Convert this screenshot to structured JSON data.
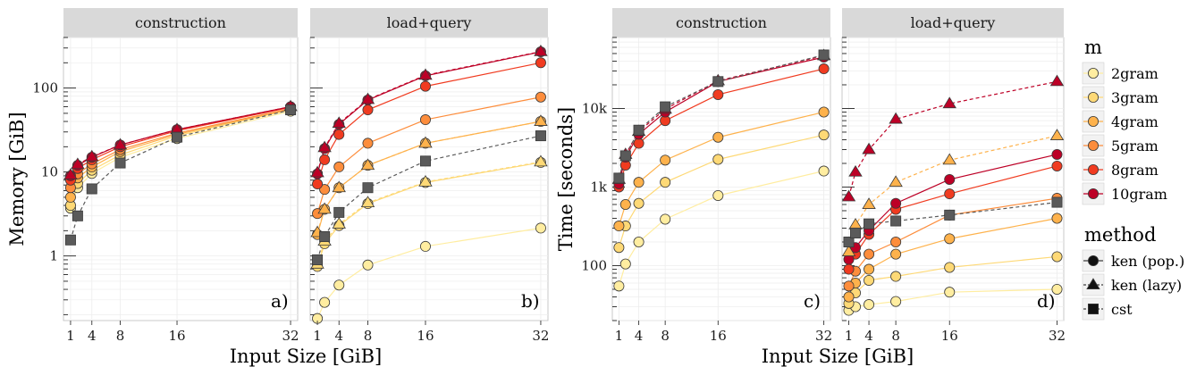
{
  "chart_data": {
    "type": "line",
    "x_axis": {
      "label": "Input Size [GiB]",
      "ticks": [
        1,
        4,
        8,
        16,
        32
      ],
      "range": [
        0,
        33
      ]
    },
    "y_axis_log": true,
    "legend": {
      "placement": "right",
      "m_title": "m",
      "m_entries": [
        {
          "key": "2gram",
          "label": "2gram",
          "color": "#FFEDA0"
        },
        {
          "key": "3gram",
          "label": "3gram",
          "color": "#FED976"
        },
        {
          "key": "4gram",
          "label": "4gram",
          "color": "#FEB24C"
        },
        {
          "key": "5gram",
          "label": "5gram",
          "color": "#FD8D3C"
        },
        {
          "key": "8gram",
          "label": "8gram",
          "color": "#F03B20"
        },
        {
          "key": "10gram",
          "label": "10gram",
          "color": "#BD0026"
        }
      ],
      "method_title": "method",
      "method_entries": [
        {
          "key": "pop",
          "label": "ken (pop.)",
          "shape": "circle",
          "dash": "solid"
        },
        {
          "key": "lazy",
          "label": "ken (lazy)",
          "shape": "triangle",
          "dash": "dashed"
        },
        {
          "key": "cst",
          "label": "cst",
          "shape": "square",
          "dash": "dashed"
        }
      ]
    },
    "cst_color": "#5a5a5a",
    "groups": [
      {
        "ylabel": "Memory [GiB]",
        "y_range": [
          0.17,
          400
        ],
        "y_ticks": [
          {
            "v": 1,
            "label": "1"
          },
          {
            "v": 10,
            "label": "10"
          },
          {
            "v": 100,
            "label": "100"
          }
        ],
        "panels": [
          {
            "strip": "construction",
            "tag": "a)",
            "series": [
              {
                "m": "2gram",
                "method": "pop",
                "x": [
                  1,
                  2,
                  4,
                  8,
                  16,
                  32
                ],
                "y": [
                  3.7,
                  6.5,
                  9.6,
                  15,
                  25,
                  53
                ]
              },
              {
                "m": "3gram",
                "method": "pop",
                "x": [
                  1,
                  2,
                  4,
                  8,
                  16,
                  32
                ],
                "y": [
                  4.0,
                  7.3,
                  10.5,
                  16,
                  27,
                  55
                ]
              },
              {
                "m": "4gram",
                "method": "pop",
                "x": [
                  1,
                  2,
                  4,
                  8,
                  16,
                  32
                ],
                "y": [
                  5.0,
                  8.5,
                  11.5,
                  17.5,
                  28,
                  56
                ]
              },
              {
                "m": "5gram",
                "method": "pop",
                "x": [
                  1,
                  2,
                  4,
                  8,
                  16,
                  32
                ],
                "y": [
                  6.5,
                  9.5,
                  12.5,
                  18.5,
                  29,
                  57
                ]
              },
              {
                "m": "8gram",
                "method": "pop",
                "x": [
                  1,
                  2,
                  4,
                  8,
                  16,
                  32
                ],
                "y": [
                  8,
                  11,
                  14,
                  20,
                  31,
                  59
                ]
              },
              {
                "m": "10gram",
                "method": "pop",
                "x": [
                  1,
                  2,
                  4,
                  8,
                  16,
                  32
                ],
                "y": [
                  9,
                  12,
                  15,
                  21,
                  32,
                  60
                ]
              },
              {
                "m": "10gram",
                "method": "lazy",
                "x": [
                  1,
                  2,
                  4,
                  8,
                  16,
                  32
                ],
                "y": [
                  9.2,
                  12.3,
                  15.2,
                  21,
                  32,
                  60
                ]
              },
              {
                "m": "cst",
                "method": "cst",
                "x": [
                  1,
                  2,
                  4,
                  8,
                  16,
                  32
                ],
                "y": [
                  1.55,
                  3.0,
                  6.3,
                  12.8,
                  26,
                  55
                ]
              }
            ]
          },
          {
            "strip": "load+query",
            "tag": "b)",
            "series": [
              {
                "m": "2gram",
                "method": "pop",
                "x": [
                  1,
                  2,
                  4,
                  8,
                  16,
                  32
                ],
                "y": [
                  0.18,
                  0.28,
                  0.45,
                  0.78,
                  1.3,
                  2.15
                ]
              },
              {
                "m": "3gram",
                "method": "pop",
                "x": [
                  1,
                  2,
                  4,
                  8,
                  16,
                  32
                ],
                "y": [
                  0.75,
                  1.4,
                  2.3,
                  4.2,
                  7.5,
                  13
                ]
              },
              {
                "m": "4gram",
                "method": "pop",
                "x": [
                  1,
                  2,
                  4,
                  8,
                  16,
                  32
                ],
                "y": [
                  1.8,
                  3.6,
                  6.5,
                  12,
                  22,
                  40
                ]
              },
              {
                "m": "5gram",
                "method": "pop",
                "x": [
                  1,
                  2,
                  4,
                  8,
                  16,
                  32
                ],
                "y": [
                  3.2,
                  6.2,
                  11.5,
                  22,
                  42,
                  78
                ]
              },
              {
                "m": "8gram",
                "method": "pop",
                "x": [
                  1,
                  2,
                  4,
                  8,
                  16,
                  32
                ],
                "y": [
                  7.2,
                  14,
                  28,
                  55,
                  105,
                  200
                ]
              },
              {
                "m": "10gram",
                "method": "pop",
                "x": [
                  1,
                  2,
                  4,
                  8,
                  16,
                  32
                ],
                "y": [
                  9.5,
                  19,
                  37,
                  72,
                  140,
                  270
                ]
              },
              {
                "m": "3gram",
                "method": "lazy",
                "x": [
                  1,
                  2,
                  4,
                  8,
                  16,
                  32
                ],
                "y": [
                  0.8,
                  1.5,
                  2.4,
                  4.3,
                  7.6,
                  13.2
                ]
              },
              {
                "m": "4gram",
                "method": "lazy",
                "x": [
                  1,
                  2,
                  4,
                  8,
                  16,
                  32
                ],
                "y": [
                  1.9,
                  3.6,
                  6.5,
                  12,
                  22,
                  40
                ]
              },
              {
                "m": "10gram",
                "method": "lazy",
                "x": [
                  1,
                  2,
                  4,
                  8,
                  16,
                  32
                ],
                "y": [
                  9.8,
                  19.5,
                  38,
                  73,
                  142,
                  272
                ]
              },
              {
                "m": "cst",
                "method": "cst",
                "x": [
                  1,
                  2,
                  4,
                  8,
                  16,
                  32
                ],
                "y": [
                  0.9,
                  1.7,
                  3.3,
                  6.5,
                  13.5,
                  27
                ]
              }
            ]
          }
        ]
      },
      {
        "ylabel": "Time [seconds]",
        "y_range": [
          20,
          80000
        ],
        "y_ticks": [
          {
            "v": 100,
            "label": "100"
          },
          {
            "v": 1000,
            "label": "1k"
          },
          {
            "v": 10000,
            "label": "10k"
          }
        ],
        "panels": [
          {
            "strip": "construction",
            "tag": "c)",
            "series": [
              {
                "m": "2gram",
                "method": "pop",
                "x": [
                  1,
                  2,
                  4,
                  8,
                  16,
                  32
                ],
                "y": [
                  55,
                  105,
                  200,
                  390,
                  780,
                  1600
                ]
              },
              {
                "m": "3gram",
                "method": "pop",
                "x": [
                  1,
                  2,
                  4,
                  8,
                  16,
                  32
                ],
                "y": [
                  170,
                  320,
                  620,
                  1150,
                  2250,
                  4600
                ]
              },
              {
                "m": "4gram",
                "method": "pop",
                "x": [
                  1,
                  2,
                  4,
                  8,
                  16,
                  32
                ],
                "y": [
                  320,
                  600,
                  1150,
                  2200,
                  4300,
                  9000
                ]
              },
              {
                "m": "8gram",
                "method": "pop",
                "x": [
                  1,
                  2,
                  4,
                  8,
                  16,
                  32
                ],
                "y": [
                  1000,
                  1900,
                  3600,
                  7000,
                  15000,
                  32000
                ]
              },
              {
                "m": "10gram",
                "method": "pop",
                "x": [
                  1,
                  2,
                  4,
                  8,
                  16,
                  32
                ],
                "y": [
                  1100,
                  2400,
                  4700,
                  9000,
                  22000,
                  45000
                ]
              },
              {
                "m": "10gram",
                "method": "lazy",
                "x": [
                  1,
                  2,
                  4,
                  8,
                  16,
                  32
                ],
                "y": [
                  1250,
                  2600,
                  5100,
                  9800,
                  22500,
                  47000
                ]
              },
              {
                "m": "cst",
                "method": "cst",
                "x": [
                  1,
                  2,
                  4,
                  8,
                  16,
                  32
                ],
                "y": [
                  1300,
                  2500,
                  5300,
                  10500,
                  22000,
                  48000
                ]
              }
            ]
          },
          {
            "strip": "load+query",
            "tag": "d)",
            "series": [
              {
                "m": "2gram",
                "method": "pop",
                "x": [
                  1,
                  2,
                  4,
                  8,
                  16,
                  32
                ],
                "y": [
                  27,
                  30,
                  32,
                  35,
                  46,
                  50
                ]
              },
              {
                "m": "3gram",
                "method": "pop",
                "x": [
                  1,
                  2,
                  4,
                  8,
                  16,
                  32
                ],
                "y": [
                  33,
                  45,
                  65,
                  73,
                  95,
                  130
                ]
              },
              {
                "m": "4gram",
                "method": "pop",
                "x": [
                  1,
                  2,
                  4,
                  8,
                  16,
                  32
                ],
                "y": [
                  40,
                  60,
                  90,
                  140,
                  220,
                  400
                ]
              },
              {
                "m": "5gram",
                "method": "pop",
                "x": [
                  1,
                  2,
                  4,
                  8,
                  16,
                  32
                ],
                "y": [
                  55,
                  85,
                  140,
                  200,
                  440,
                  720
                ]
              },
              {
                "m": "8gram",
                "method": "pop",
                "x": [
                  1,
                  2,
                  4,
                  8,
                  16,
                  32
                ],
                "y": [
                  90,
                  140,
                  250,
                  520,
                  820,
                  1850
                ]
              },
              {
                "m": "10gram",
                "method": "pop",
                "x": [
                  1,
                  2,
                  4,
                  8,
                  16,
                  32
                ],
                "y": [
                  120,
                  170,
                  280,
                  620,
                  1250,
                  2600
                ]
              },
              {
                "m": "4gram",
                "method": "lazy",
                "x": [
                  1,
                  2,
                  4,
                  8,
                  16,
                  32
                ],
                "y": [
                  150,
                  330,
                  600,
                  1150,
                  2200,
                  4500
                ]
              },
              {
                "m": "10gram",
                "method": "lazy",
                "x": [
                  1,
                  2,
                  4,
                  8,
                  16,
                  32
                ],
                "y": [
                  750,
                  1550,
                  3000,
                  7300,
                  11500,
                  22000
                ]
              },
              {
                "m": "cst",
                "method": "cst",
                "x": [
                  1,
                  2,
                  4,
                  8,
                  16,
                  32
                ],
                "y": [
                  200,
                  260,
                  340,
                  370,
                  440,
                  640
                ]
              }
            ]
          }
        ]
      }
    ]
  }
}
